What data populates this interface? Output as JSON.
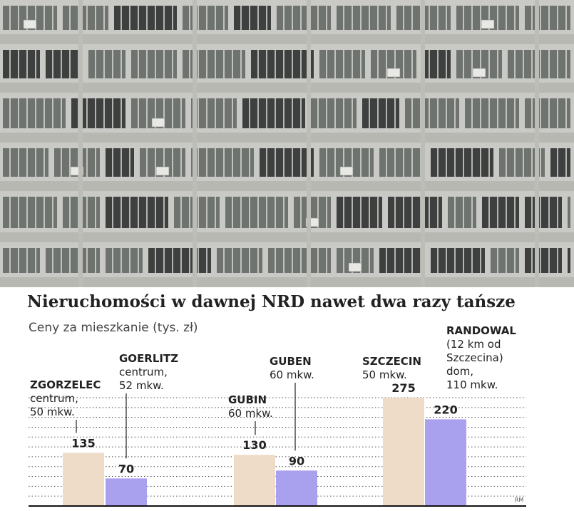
{
  "photo": {
    "subject": "building-facade-photo"
  },
  "chart_data": {
    "type": "bar",
    "title": "Nieruchomości w dawnej NRD nawet dwa razy tańsze",
    "subtitle": "Ceny za mieszkanie (tys. zł)",
    "ylim": [
      0,
      300
    ],
    "grid": true,
    "pairs": [
      {
        "a": {
          "label": [
            "ZGORZELEC",
            "centrum,",
            "50 mkw."
          ],
          "value": 135
        },
        "b": {
          "label": [
            "GOERLITZ",
            "centrum,",
            "52 mkw."
          ],
          "value": 70
        }
      },
      {
        "a": {
          "label": [
            "GUBIN",
            "60 mkw."
          ],
          "value": 130
        },
        "b": {
          "label": [
            "GUBEN",
            "60 mkw."
          ],
          "value": 90
        }
      },
      {
        "a": {
          "label": [
            "SZCZECIN",
            "50 mkw."
          ],
          "value": 275
        },
        "b": {
          "label": [
            "RANDOWAL",
            "(12 km od",
            "Szczecina)",
            "dom,",
            "110 mkw."
          ],
          "value": 220
        }
      }
    ],
    "colors": {
      "polish_side": "#efdcc8",
      "german_side": "#a9a0ee"
    },
    "credit": "RM"
  }
}
